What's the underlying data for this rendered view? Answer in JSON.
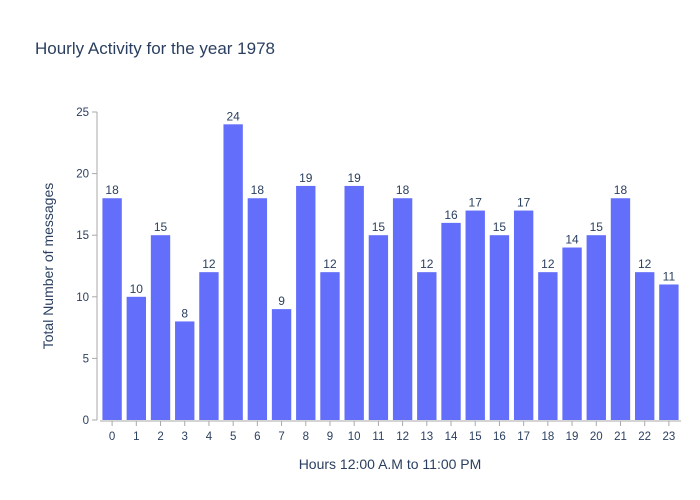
{
  "chart_data": {
    "type": "bar",
    "title": "Hourly Activity for the year 1978",
    "xlabel": "Hours 12:00 A.M to 11:00 PM",
    "ylabel": "Total Number of messages",
    "categories": [
      "0",
      "1",
      "2",
      "3",
      "4",
      "5",
      "6",
      "7",
      "8",
      "9",
      "10",
      "11",
      "12",
      "13",
      "14",
      "15",
      "16",
      "17",
      "18",
      "19",
      "20",
      "21",
      "22",
      "23"
    ],
    "values": [
      18,
      10,
      15,
      8,
      12,
      24,
      18,
      9,
      19,
      12,
      19,
      15,
      18,
      12,
      16,
      17,
      15,
      17,
      12,
      14,
      15,
      18,
      12,
      11
    ],
    "ylim": [
      0,
      25
    ],
    "yticks": [
      0,
      5,
      10,
      15,
      20,
      25
    ],
    "bar_color": "#636efa",
    "text_color": "#2a3f5f",
    "grid": false,
    "show_values": true
  }
}
